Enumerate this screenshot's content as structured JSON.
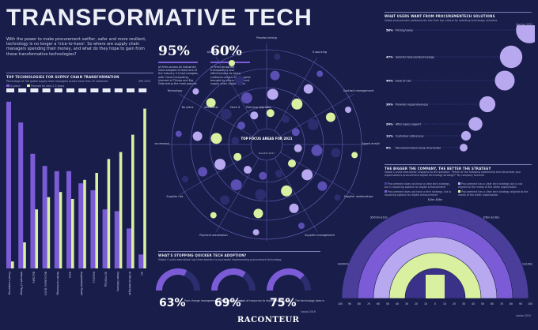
{
  "header": {
    "title": "TRANSFORMATIVE TECH",
    "intro": "With the power to make procurement swifter, safer and more resilient, technology is no longer a 'nice-to-have'. So where are supply chain managers spending their money, and what do they hope to gain from these transformative technologies?"
  },
  "colors": {
    "background": "#181d4a",
    "accent_purple": "#7b5cd6",
    "accent_lime": "#d8f0a0",
    "light_purple": "#b7a8ef"
  },
  "top_tech": {
    "title": "TOP TECHNOLOGIES FOR SUPPLY CHAIN TRANSFORMATION",
    "subtitle": "Percentage of 700 global supply chain managers across more than 20 industries",
    "source": "UPS 2021",
    "legend": [
      "In place",
      "Planned for next 2-3 years"
    ]
  },
  "stats": [
    {
      "value": "95%",
      "text": "of firms across all industries have adopted at least one of the Industry 4.0 technologies, with Cloud Computing, Internet of Things and Big Data being the most popular"
    },
    {
      "value": "60%",
      "text": "of firms recognise transparency and effectiveness as being customer-centric as key gains brought by procurement and supply chain digitalisation"
    }
  ],
  "radial": {
    "title": "TOP FOCUS AREAS FOR 2021",
    "subtitle": "Percentage of global procurement professionals who are investing in the following technologies",
    "source": "Deloitte 2021",
    "labels": [
      "No plans",
      "Will invest",
      "Have it",
      "Planning upgrades"
    ],
    "spokes": [
      "Process mining",
      "E-sourcing",
      "Contract management",
      "Spend analytics",
      "Supplier relationships",
      "Supplier management",
      "Supplier network",
      "Payment automation",
      "Supplier risk",
      "Procurement",
      "Technology",
      "Allocation"
    ]
  },
  "users": {
    "title": "WHAT USERS WANT FROM PROCUREMENTECH SOLUTIONS",
    "subtitle": "Global procurement professionals cite their top criteria for selecting technology solutions",
    "source": "Gartner 2021",
    "items": [
      {
        "label": "Pricing/value",
        "value": 58
      },
      {
        "label": "Solution features/technology",
        "value": 47
      },
      {
        "label": "Ease of use",
        "value": 40
      },
      {
        "label": "Provider responsiveness",
        "value": 30
      },
      {
        "label": "After sales support",
        "value": 24
      },
      {
        "label": "Customer references",
        "value": 13
      },
      {
        "label": "Perceived brand value of provider",
        "value": 8
      }
    ]
  },
  "bigger": {
    "title": "THE BIGGER THE COMPANY, THE BETTER THE STRATEGY",
    "subtitle": "Global C-suite executives' response to the question: \"Which of the following statements best describes your organisation's procurement digital technology strategy?\" By company turnover",
    "source": "Ivalua 2019",
    "legend": [
      "Procurement does not have a clear tech strategy, but is exploring options for digital enhancement",
      "Procurement does not have a tech strategy, but is exploring options for digital enhancement",
      "Procurement has a clear tech strategy but is not aligned to the needs of the wider organisation",
      "Procurement has a clear tech strategy aligned to the needs of the wider organisation"
    ],
    "arc_labels": [
      "<$500m",
      "$500m-$1bn",
      "$1bn-$5bn",
      "$5bn-$10bn",
      ">$10bn"
    ],
    "scale": [
      "100",
      "90",
      "80",
      "70",
      "60",
      "50",
      "40",
      "30",
      "20",
      "10",
      "0",
      "10",
      "20",
      "30",
      "40",
      "50",
      "60",
      "70",
      "80",
      "90",
      "100"
    ]
  },
  "stopping": {
    "title": "WHAT'S STOPPING QUICKER TECH ADOPTION?",
    "subtitle": "Global C-suite executives' top three barriers to successful implementing procurement technology",
    "source": "Ivalua 2019",
    "items": [
      {
        "value": "63%",
        "label": "Poor change management within the business"
      },
      {
        "value": "69%",
        "label": "Lack of resources to implement solution"
      },
      {
        "value": "75%",
        "label": "The technology does not fit in with existing processes"
      }
    ]
  },
  "footer": {
    "brand": "RACONTEUR"
  },
  "chart_data": [
    {
      "type": "bar",
      "title": "TOP TECHNOLOGIES FOR SUPPLY CHAIN TRANSFORMATION",
      "categories": [
        "Cloud computing",
        "Internet of Things",
        "Big Data",
        "Blockchain/ Distributed Ledger",
        "Smart technology",
        "RFID",
        "Augmented Reality",
        "Robotics",
        "3D Printing",
        "Drone Delivery",
        "Artificial Intelligence",
        "5G"
      ],
      "series": [
        {
          "name": "In place",
          "values": [
            96,
            84,
            66,
            59,
            56,
            56,
            49,
            45,
            34,
            33,
            23,
            8
          ]
        },
        {
          "name": "Planned for next 2-3 years",
          "values": [
            4,
            15,
            34,
            41,
            44,
            40,
            51,
            55,
            63,
            67,
            77,
            92
          ]
        }
      ],
      "ylim": [
        0,
        100
      ]
    },
    {
      "type": "bar",
      "title": "WHAT USERS WANT FROM PROCUREMENTECH SOLUTIONS",
      "categories": [
        "Pricing/value",
        "Solution features/technology",
        "Ease of use",
        "Provider responsiveness",
        "After sales support",
        "Customer references",
        "Perceived brand value of provider"
      ],
      "values": [
        58,
        47,
        40,
        30,
        24,
        13,
        8
      ]
    },
    {
      "type": "pie",
      "title": "WHAT'S STOPPING QUICKER TECH ADOPTION?",
      "categories": [
        "Poor change management within the business",
        "Lack of resources to implement solution",
        "The technology does not fit in with existing processes"
      ],
      "values": [
        63,
        69,
        75
      ]
    }
  ]
}
